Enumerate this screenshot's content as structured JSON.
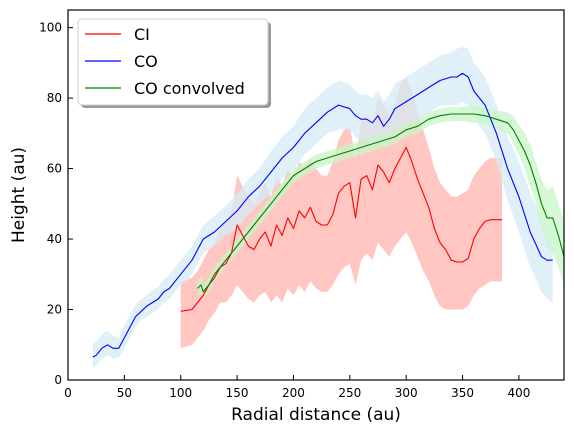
{
  "chart_data": {
    "type": "line",
    "title": "",
    "xlabel": "Radial distance (au)",
    "ylabel": "Height (au)",
    "xlim": [
      0,
      440
    ],
    "ylim": [
      0,
      105
    ],
    "xticks": [
      0,
      50,
      100,
      150,
      200,
      250,
      300,
      350,
      400
    ],
    "yticks": [
      0,
      20,
      40,
      60,
      80,
      100
    ],
    "grid": false,
    "legend_position": "top-left",
    "series": [
      {
        "name": "CI",
        "color": "#ff0000",
        "band_color": "#ffb3ad",
        "x": [
          100,
          110,
          115,
          120,
          125,
          130,
          135,
          140,
          145,
          150,
          155,
          160,
          165,
          170,
          175,
          180,
          185,
          190,
          195,
          200,
          205,
          210,
          215,
          220,
          225,
          230,
          235,
          240,
          245,
          250,
          255,
          260,
          265,
          270,
          275,
          280,
          285,
          290,
          295,
          300,
          305,
          310,
          315,
          320,
          325,
          330,
          335,
          340,
          345,
          350,
          355,
          360,
          365,
          370,
          375,
          380,
          385
        ],
        "y": [
          19.5,
          20,
          22,
          24,
          27,
          29,
          32,
          33,
          36,
          44,
          41,
          38,
          37,
          40,
          42,
          38,
          44,
          41,
          46,
          43,
          48,
          46,
          49,
          45,
          44,
          44,
          47,
          53,
          55,
          56,
          46,
          57,
          58,
          54,
          61,
          59,
          56,
          60,
          63,
          66,
          62,
          57,
          53,
          49,
          43,
          39,
          37,
          34,
          33.5,
          33.5,
          34.5,
          40,
          43,
          45,
          45.5,
          45.5,
          45.5
        ],
        "lower": [
          9,
          10,
          12,
          14,
          17,
          19,
          22,
          22,
          24,
          27,
          25,
          23,
          22,
          24,
          25,
          22,
          24,
          22,
          26,
          24,
          27,
          25,
          28,
          26,
          25,
          25,
          27,
          30,
          32,
          33,
          27,
          34,
          36,
          34,
          39,
          37,
          35,
          38,
          40,
          42,
          39,
          35,
          31,
          28,
          24,
          21,
          20,
          20,
          20,
          20,
          21,
          24,
          26,
          27,
          28,
          28,
          28
        ],
        "upper": [
          28,
          29,
          31,
          34,
          37,
          39,
          43,
          45,
          48,
          58,
          55,
          52,
          50,
          53,
          56,
          52,
          58,
          55,
          60,
          57,
          62,
          60,
          63,
          60,
          58,
          58,
          62,
          68,
          71,
          72,
          63,
          73,
          75,
          72,
          80,
          78,
          75,
          78,
          84,
          86,
          82,
          76,
          71,
          66,
          60,
          56,
          54,
          52,
          52,
          53,
          54,
          58,
          60,
          62,
          63,
          63,
          63
        ]
      },
      {
        "name": "CO",
        "color": "#0000ff",
        "band_color": "#d6ebf7",
        "x": [
          22,
          25,
          30,
          35,
          40,
          45,
          50,
          55,
          60,
          65,
          70,
          75,
          80,
          85,
          90,
          95,
          100,
          105,
          110,
          115,
          120,
          130,
          140,
          150,
          160,
          170,
          180,
          190,
          200,
          210,
          220,
          230,
          240,
          250,
          255,
          260,
          265,
          270,
          275,
          280,
          285,
          290,
          300,
          310,
          320,
          330,
          340,
          345,
          350,
          355,
          360,
          370,
          380,
          390,
          400,
          410,
          420,
          425,
          430
        ],
        "y": [
          6.5,
          7,
          9,
          10,
          9,
          9,
          12,
          15,
          18,
          19.5,
          21,
          22,
          23,
          25,
          26,
          28,
          30,
          32,
          34,
          37,
          40,
          42,
          45,
          48,
          52,
          55,
          59,
          63,
          66,
          70,
          73,
          76,
          78,
          77,
          75,
          74,
          74,
          73,
          75,
          72,
          74,
          77,
          79,
          81,
          83,
          85,
          86,
          86,
          87,
          86,
          82,
          78,
          70,
          60,
          52,
          42,
          35,
          34,
          34
        ],
        "lower": [
          3.5,
          4,
          6,
          7,
          6,
          6.5,
          9,
          12,
          15,
          17,
          18,
          19,
          20,
          22,
          23,
          25,
          27,
          28,
          30,
          33,
          36,
          38,
          41,
          43,
          47,
          50,
          53,
          57,
          60,
          64,
          67,
          70,
          71,
          71,
          69,
          68,
          68,
          67,
          69,
          66,
          68,
          71,
          72,
          74,
          76,
          78,
          78,
          78,
          79,
          78,
          74,
          70,
          62,
          51,
          42,
          32,
          25,
          23,
          22
        ],
        "upper": [
          10,
          11,
          13,
          14,
          12.5,
          12,
          15.5,
          18.5,
          21.5,
          23,
          24,
          25.5,
          26.5,
          28.5,
          30,
          32,
          34,
          36,
          38,
          41,
          44,
          46.5,
          49.5,
          53,
          57,
          60,
          65,
          69,
          72,
          77,
          80,
          83,
          85,
          84,
          82,
          81,
          81,
          80,
          82,
          79,
          81,
          84,
          86,
          88,
          90,
          92,
          93,
          94,
          94.5,
          94,
          90,
          86,
          78,
          69,
          62,
          53,
          46,
          44,
          44
        ]
      },
      {
        "name": "CO convolved",
        "color": "#008000",
        "band_color": "#c9f5c9",
        "x": [
          115,
          118,
          120,
          125,
          130,
          140,
          150,
          160,
          170,
          180,
          190,
          200,
          210,
          220,
          230,
          240,
          250,
          260,
          270,
          280,
          290,
          300,
          310,
          320,
          330,
          340,
          350,
          360,
          370,
          380,
          390,
          395,
          400,
          405,
          410,
          415,
          420,
          425,
          430,
          435,
          440
        ],
        "y": [
          26,
          27,
          25,
          27,
          30,
          34,
          38,
          42,
          46,
          50,
          54,
          58,
          60,
          62,
          63,
          64,
          65,
          66,
          67,
          68,
          69,
          71,
          72,
          74,
          75,
          75.5,
          75.5,
          75.5,
          75,
          74,
          73,
          71,
          68,
          65,
          61,
          56,
          50,
          46,
          46,
          41,
          35
        ],
        "lower": [
          24,
          24.5,
          23,
          25,
          28,
          32,
          36,
          40,
          44,
          48,
          52,
          56,
          58,
          60,
          61,
          62,
          63,
          64,
          65,
          66,
          67,
          69,
          70,
          72,
          73,
          73.5,
          73.5,
          73,
          72.5,
          71.5,
          70,
          67,
          64,
          60,
          55,
          50,
          43,
          38,
          36,
          32,
          27
        ],
        "upper": [
          28,
          29.5,
          27,
          29,
          32,
          36,
          40,
          44,
          48,
          52,
          56,
          60,
          62,
          64,
          65,
          66,
          67,
          68,
          69,
          70,
          71,
          73,
          74,
          76,
          77,
          77.5,
          77.5,
          78,
          77.5,
          76.5,
          76,
          75,
          72.5,
          70,
          67,
          62,
          57,
          54,
          55,
          50,
          45
        ]
      }
    ]
  }
}
